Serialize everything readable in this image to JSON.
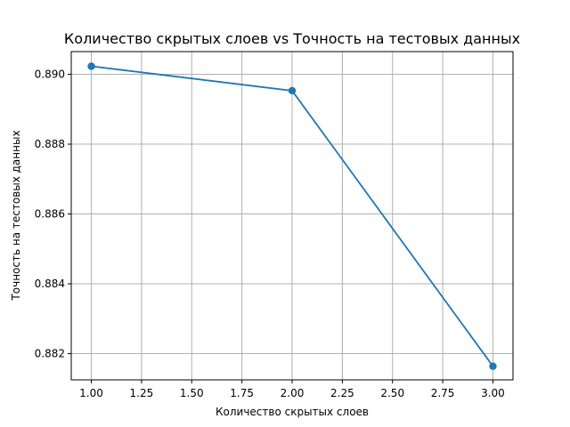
{
  "chart_data": {
    "type": "line",
    "title": "Количество скрытых слоев vs Точность на тестовых данных",
    "xlabel": "Количество скрытых слоев",
    "ylabel": "Точность на тестовых данных",
    "x": [
      1,
      2,
      3
    ],
    "series": [
      {
        "values": [
          0.89023,
          0.88953,
          0.88164
        ],
        "color": "#1f77b4",
        "marker": "circle"
      }
    ],
    "xlim": [
      0.9,
      3.1
    ],
    "ylim": [
      0.88125,
      0.89065
    ],
    "xticks": [
      1.0,
      1.25,
      1.5,
      1.75,
      2.0,
      2.25,
      2.5,
      2.75,
      3.0
    ],
    "xtick_labels": [
      "1.00",
      "1.25",
      "1.50",
      "1.75",
      "2.00",
      "2.25",
      "2.50",
      "2.75",
      "3.00"
    ],
    "yticks": [
      0.882,
      0.884,
      0.886,
      0.888,
      0.89
    ],
    "ytick_labels": [
      "0.882",
      "0.884",
      "0.886",
      "0.888",
      "0.890"
    ],
    "grid": true,
    "legend": "none"
  }
}
